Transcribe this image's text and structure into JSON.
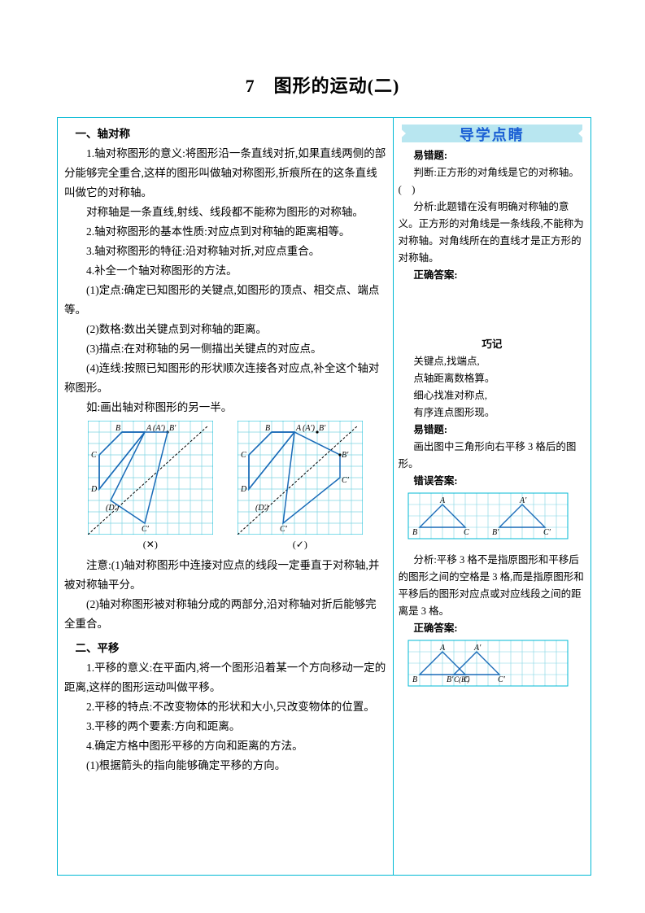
{
  "title": "7　图形的运动(二)",
  "left": {
    "s1_head": "一、轴对称",
    "p1": "1.轴对称图形的意义:将图形沿一条直线对折,如果直线两侧的部分能够完全重合,这样的图形叫做轴对称图形,折痕所在的这条直线叫做它的对称轴。",
    "p2": "对称轴是一条直线,射线、线段都不能称为图形的对称轴。",
    "p3": "2.轴对称图形的基本性质:对应点到对称轴的距离相等。",
    "p4": "3.轴对称图形的特征:沿对称轴对折,对应点重合。",
    "p5": "4.补全一个轴对称图形的方法。",
    "p5a": "(1)定点:确定已知图形的关键点,如图形的顶点、相交点、端点等。",
    "p5b": "(2)数格:数出关键点到对称轴的距离。",
    "p5c": "(3)描点:在对称轴的另一侧描出关键点的对应点。",
    "p5d": "(4)连线:按照已知图形的形状顺次连接各对应点,补全这个轴对称图形。",
    "p6": "如:画出轴对称图形的另一半。",
    "grid_wrong_label": "(✕)",
    "grid_right_label": "(✓)",
    "note1": "注意:(1)轴对称图形中连接对应点的线段一定垂直于对称轴,并被对称轴平分。",
    "note2": "(2)轴对称图形被对称轴分成的两部分,沿对称轴对折后能够完全重合。",
    "s2_head": "二、平移",
    "q1": "1.平移的意义:在平面内,将一个图形沿着某一个方向移动一定的距离,这样的图形运动叫做平移。",
    "q2": "2.平移的特点:不改变物体的形状和大小,只改变物体的位置。",
    "q3": "3.平移的两个要素:方向和距离。",
    "q4": "4.确定方格中图形平移的方向和距离的方法。",
    "q4a": "(1)根据箭头的指向能够确定平移的方向。"
  },
  "right": {
    "banner": "导学点睛",
    "h1": "易错题:",
    "r1": "判断:正方形的对角线是它的对称轴。(　)",
    "r2": "分析:此题错在没有明确对称轴的意义。正方形的对角线是一条线段,不能称为对称轴。对角线所在的直线才是正方形的对称轴。",
    "r3": "正确答案:",
    "h2": "巧记",
    "m1": "关键点,找端点,",
    "m2": "点轴距离数格算。",
    "m3": "细心找准对称点,",
    "m4": "有序连点图形现。",
    "h3": "易错题:",
    "r4": "画出图中三角形向右平移 3 格后的图形。",
    "r5": "错误答案:",
    "r6": "分析:平移 3 格不是指原图形和平移后的图形之间的空格是 3 格,而是指原图形和平移后的图形对应点或对应线段之间的距离是 3 格。",
    "r7": "正确答案:"
  },
  "style": {
    "grid_color": "#7fd4e3",
    "grid_dark": "#00b8d4",
    "shape_color": "#1a6bb8",
    "axis_color": "#000",
    "cell": 14
  }
}
